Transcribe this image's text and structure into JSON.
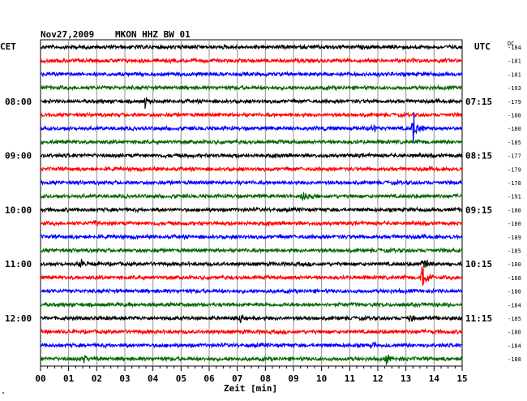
{
  "header": {
    "date": "Nov27,2009",
    "station": "MKON HHZ BW 01",
    "left_zone": "CET",
    "right_zone": "UTC",
    "dc_label": "DC"
  },
  "footer": {
    "xlabel": "Zeit [min]",
    "corner_mark": "\""
  },
  "chart_data": {
    "type": "seismogram-helicorder",
    "title": "Nov27,2009  MKON HHZ BW 01",
    "xlabel": "Zeit [min]",
    "xlim": [
      0,
      15
    ],
    "x_ticks": [
      "00",
      "01",
      "02",
      "03",
      "04",
      "05",
      "06",
      "07",
      "08",
      "09",
      "10",
      "11",
      "12",
      "13",
      "14",
      "15"
    ],
    "left_time_labels": [
      {
        "label": "08:00",
        "row": 4
      },
      {
        "label": "09:00",
        "row": 8
      },
      {
        "label": "10:00",
        "row": 12
      },
      {
        "label": "11:00",
        "row": 16
      },
      {
        "label": "12:00",
        "row": 20
      }
    ],
    "right_time_labels": [
      {
        "label": "07:15",
        "row": 4
      },
      {
        "label": "08:15",
        "row": 8
      },
      {
        "label": "09:15",
        "row": 12
      },
      {
        "label": "10:15",
        "row": 16
      },
      {
        "label": "11:15",
        "row": 20
      }
    ],
    "trace_colors": [
      "#000000",
      "#ff0000",
      "#0000ff",
      "#006600"
    ],
    "dc_offsets": [
      -184,
      -181,
      -181,
      -193,
      -179,
      -180,
      -180,
      -185,
      -177,
      -179,
      -178,
      -191,
      -180,
      -180,
      -189,
      -185,
      -180,
      -188,
      -180,
      -184,
      -185,
      -180,
      -184,
      -188
    ],
    "events": [
      {
        "row": 6,
        "minute": 13.25,
        "amplitude": 3.2
      },
      {
        "row": 17,
        "minute": 13.55,
        "amplitude": 2.8
      },
      {
        "row": 16,
        "minute": 13.6,
        "amplitude": 1.3
      },
      {
        "row": 4,
        "minute": 3.7,
        "amplitude": 1.0
      },
      {
        "row": 11,
        "minute": 9.3,
        "amplitude": 0.9
      },
      {
        "row": 16,
        "minute": 1.4,
        "amplitude": 0.8
      },
      {
        "row": 22,
        "minute": 11.8,
        "amplitude": 0.8
      },
      {
        "row": 23,
        "minute": 12.3,
        "amplitude": 0.9
      },
      {
        "row": 23,
        "minute": 1.5,
        "amplitude": 0.7
      },
      {
        "row": 6,
        "minute": 11.8,
        "amplitude": 0.8
      },
      {
        "row": 13,
        "minute": 1.9,
        "amplitude": 0.6
      },
      {
        "row": 20,
        "minute": 7.1,
        "amplitude": 0.6
      },
      {
        "row": 20,
        "minute": 13.1,
        "amplitude": 0.7
      }
    ]
  }
}
